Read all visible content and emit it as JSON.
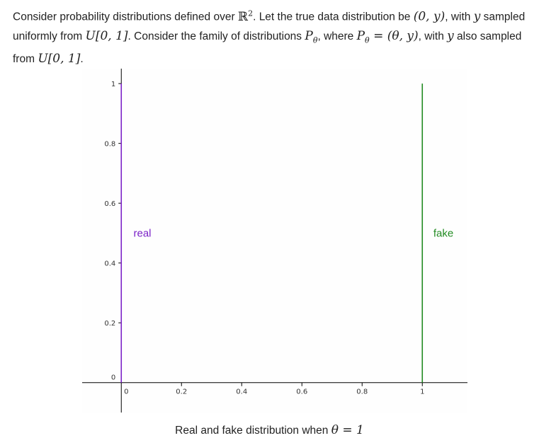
{
  "intro": {
    "part1": "Consider probability distributions defined over ",
    "space_symbol": "ℝ",
    "space_power": "2",
    "part2": ". Let the true data distribution be ",
    "true_dist": "(0, y)",
    "part3": ", with ",
    "var_y": "y",
    "part4": " sampled uniformly from ",
    "uniform": "U[0, 1]",
    "part5": ". Consider the family of distributions ",
    "family_symbol": "P",
    "family_sub": "θ",
    "part6": ", where ",
    "family_def_lhs": "P",
    "family_def_sub": "θ",
    "family_def_rhs": " = (θ, y)",
    "part7": ", with ",
    "var_y2": "y",
    "part8": " also sampled from ",
    "uniform2": "U[0, 1]",
    "part9": "."
  },
  "caption": {
    "text": "Real and fake distribution when ",
    "math": "θ = 1"
  },
  "colors": {
    "real": "#7b22c8",
    "fake": "#228b22",
    "axis": "#000000",
    "text": "#222222"
  },
  "chart_data": {
    "type": "line",
    "xlim": [
      -0.13,
      1.15
    ],
    "ylim": [
      -0.1,
      1.05
    ],
    "x_ticks": [
      0,
      0.2,
      0.4,
      0.6,
      0.8,
      1
    ],
    "x_tick_labels": [
      "0",
      "0.2",
      "0.4",
      "0.6",
      "0.8",
      "1"
    ],
    "y_ticks": [
      0,
      0.2,
      0.4,
      0.6,
      0.8,
      1
    ],
    "y_tick_labels": [
      "0",
      "0.2",
      "0.4",
      "0.6",
      "0.8",
      "1"
    ],
    "grid": false,
    "series": [
      {
        "name": "real",
        "color": "#7b22c8",
        "x": [
          0,
          0
        ],
        "y": [
          0,
          1
        ],
        "label_at": [
          0.07,
          0.5
        ]
      },
      {
        "name": "fake",
        "color": "#228b22",
        "x": [
          1,
          1
        ],
        "y": [
          0,
          1
        ],
        "label_at": [
          1.07,
          0.5
        ]
      }
    ]
  }
}
